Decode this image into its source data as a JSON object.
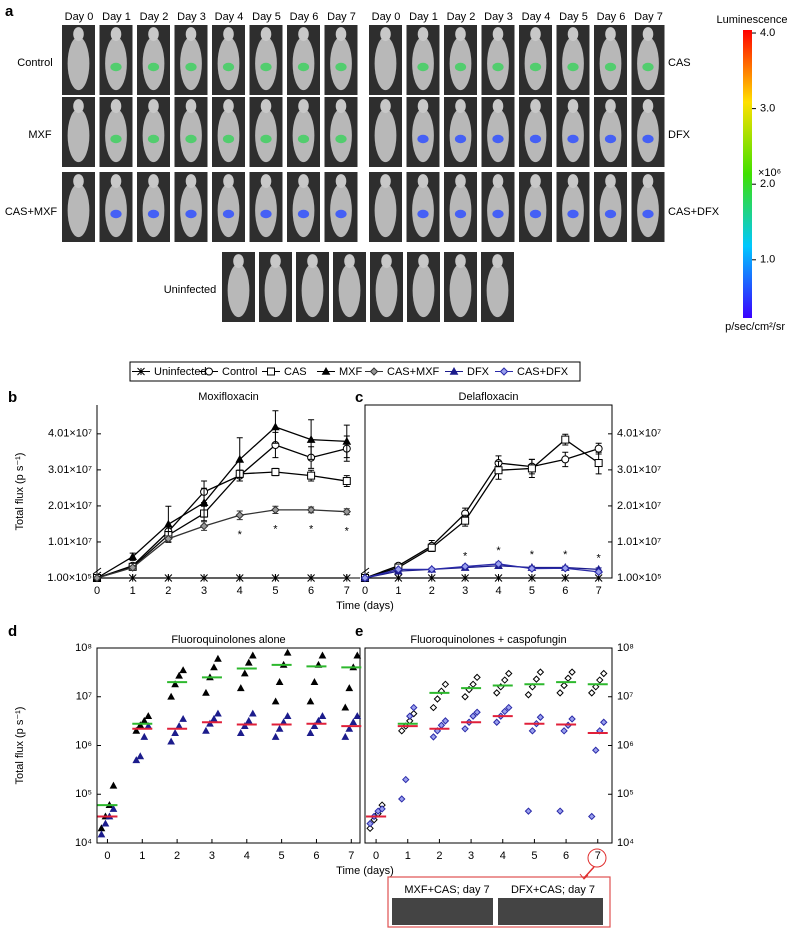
{
  "panel_labels": [
    "a",
    "b",
    "c",
    "d",
    "e"
  ],
  "panel_a": {
    "days_left": [
      "Day 0",
      "Day 1",
      "Day 2",
      "Day 3",
      "Day 4",
      "Day 5",
      "Day 6",
      "Day 7"
    ],
    "days_right": [
      "Day 0",
      "Day 1",
      "Day 2",
      "Day 3",
      "Day 4",
      "Day 5",
      "Day 6",
      "Day 7"
    ],
    "groups_left": [
      "Control",
      "MXF",
      "CAS+MXF"
    ],
    "groups_right": [
      "CAS",
      "DFX",
      "CAS+DFX"
    ],
    "uninfected": "Uninfected",
    "colorbar": {
      "title": "Luminescence",
      "multiplier": "×10⁶",
      "unit": "p/sec/cm²/sr",
      "lim": [
        0.23,
        4.04
      ],
      "ticks": [
        {
          "value": 4,
          "label": "4.0"
        },
        {
          "value": 3,
          "label": "3.0"
        },
        {
          "value": 2,
          "label": "2.0"
        },
        {
          "value": 1,
          "label": "1.0"
        }
      ]
    }
  },
  "legend": [
    {
      "name": "Uninfected",
      "marker": "x",
      "color": "#000",
      "fill": "#000"
    },
    {
      "name": "Control",
      "marker": "circle",
      "color": "#000",
      "fill": "#fff"
    },
    {
      "name": "CAS",
      "marker": "square",
      "color": "#000",
      "fill": "#fff"
    },
    {
      "name": "MXF",
      "marker": "triangle",
      "color": "#000",
      "fill": "#000"
    },
    {
      "name": "CAS+MXF",
      "marker": "diamond",
      "color": "#333",
      "fill": "#999"
    },
    {
      "name": "DFX",
      "marker": "triangle",
      "color": "#1c1c8c",
      "fill": "#1c1c8c"
    },
    {
      "name": "CAS+DFX",
      "marker": "diamond",
      "color": "#2a2aa8",
      "fill": "#9aa0ee"
    }
  ],
  "chart_data": [
    {
      "type": "line",
      "title": "Moxifloxacin",
      "ylabel": "Total flux (p s⁻¹)",
      "xlabel": "Time (days)",
      "x": [
        0,
        1,
        2,
        3,
        4,
        5,
        6,
        7
      ],
      "xlim": [
        0,
        7.37
      ],
      "xticks": [
        0,
        1,
        2,
        3,
        4,
        5,
        6,
        7
      ],
      "ylim": [
        100000,
        48100000
      ],
      "yticks": [
        {
          "value": 100000,
          "label": "1.00×10⁵"
        },
        {
          "value": 10100000,
          "label": "1.01×10⁷"
        },
        {
          "value": 20100000,
          "label": "2.01×10⁷"
        },
        {
          "value": 30100000,
          "label": "3.01×10⁷"
        },
        {
          "value": 40100000,
          "label": "4.01×10⁷"
        }
      ],
      "series": [
        {
          "name": "Uninfected",
          "marker": "x",
          "color": "#000",
          "fill": "#000",
          "values": [
            100000,
            100000,
            100000,
            100000,
            100000,
            100000,
            100000,
            100000
          ]
        },
        {
          "name": "Control",
          "marker": "circle",
          "color": "#000",
          "fill": "#fff",
          "values": [
            100000,
            3500000,
            13000000,
            24000000,
            28500000,
            37000000,
            33500000,
            36000000
          ],
          "errors": [
            0,
            600000,
            1500000,
            3000000,
            1500000,
            3500000,
            3000000,
            3500000
          ]
        },
        {
          "name": "CAS",
          "marker": "square",
          "color": "#000",
          "fill": "#fff",
          "values": [
            100000,
            3200000,
            12000000,
            18000000,
            29000000,
            29500000,
            28500000,
            27000000
          ],
          "errors": [
            0,
            500000,
            1000000,
            2000000,
            1000000,
            1000000,
            1500000,
            1500000
          ]
        },
        {
          "name": "MXF",
          "marker": "triangle",
          "color": "#000",
          "fill": "#000",
          "values": [
            100000,
            6000000,
            15000000,
            21000000,
            33000000,
            42000000,
            38500000,
            38000000
          ],
          "errors": [
            0,
            1000000,
            5000000,
            4000000,
            6000000,
            4500000,
            5500000,
            4500000
          ]
        },
        {
          "name": "CAS+MXF",
          "marker": "diamond",
          "color": "#333",
          "fill": "#999",
          "values": [
            100000,
            3000000,
            11000000,
            14500000,
            17500000,
            19000000,
            19000000,
            18500000
          ],
          "errors": [
            0,
            400000,
            800000,
            1200000,
            1200000,
            1000000,
            800000,
            800000
          ]
        }
      ],
      "annotations": [
        {
          "text": "*",
          "x": 4,
          "y": 12000000
        },
        {
          "text": "*",
          "x": 5,
          "y": 13500000
        },
        {
          "text": "*",
          "x": 6,
          "y": 13500000
        },
        {
          "text": "*",
          "x": 7,
          "y": 13000000
        }
      ]
    },
    {
      "type": "line",
      "title": "Delafloxacin",
      "x": [
        0,
        1,
        2,
        3,
        4,
        5,
        6,
        7
      ],
      "xlim": [
        0,
        7.4
      ],
      "xticks": [
        0,
        1,
        2,
        3,
        4,
        5,
        6,
        7
      ],
      "ylim": [
        100000,
        48100000
      ],
      "yticks": [
        {
          "value": 100000,
          "label": "1.00×10⁵"
        },
        {
          "value": 10100000,
          "label": "1.01×10⁷"
        },
        {
          "value": 20100000,
          "label": "2.01×10⁷"
        },
        {
          "value": 30100000,
          "label": "3.01×10⁷"
        },
        {
          "value": 40100000,
          "label": "4.01×10⁷"
        }
      ],
      "series": [
        {
          "name": "Uninfected",
          "marker": "x",
          "color": "#000",
          "fill": "#000",
          "values": [
            100000,
            100000,
            100000,
            100000,
            100000,
            100000,
            100000,
            100000
          ]
        },
        {
          "name": "Control",
          "marker": "circle",
          "color": "#000",
          "fill": "#fff",
          "values": [
            100000,
            3500000,
            9000000,
            18000000,
            32000000,
            31000000,
            33000000,
            36000000
          ],
          "errors": [
            0,
            500000,
            1500000,
            1500000,
            2000000,
            2000000,
            2000000,
            1500000
          ]
        },
        {
          "name": "CAS",
          "marker": "square",
          "color": "#000",
          "fill": "#fff",
          "values": [
            100000,
            3000000,
            8500000,
            16000000,
            30000000,
            30500000,
            38500000,
            32000000
          ],
          "errors": [
            0,
            500000,
            1000000,
            1500000,
            2500000,
            2500000,
            1500000,
            3000000
          ]
        },
        {
          "name": "DFX",
          "marker": "triangle",
          "color": "#1c1c8c",
          "fill": "#1c1c8c",
          "values": [
            100000,
            2000000,
            2500000,
            3000000,
            3500000,
            3000000,
            3000000,
            2500000
          ],
          "errors": [
            0,
            300000,
            300000,
            400000,
            500000,
            400000,
            400000,
            400000
          ]
        },
        {
          "name": "CAS+DFX",
          "marker": "diamond",
          "color": "#2a2aa8",
          "fill": "#9aa0ee",
          "values": [
            100000,
            2500000,
            2500000,
            3300000,
            4000000,
            2700000,
            2800000,
            1800000
          ],
          "errors": [
            0,
            300000,
            300000,
            400000,
            500000,
            400000,
            400000,
            400000
          ]
        }
      ],
      "annotations": [
        {
          "text": "*",
          "x": 3,
          "y": 6000000
        },
        {
          "text": "*",
          "x": 4,
          "y": 7500000
        },
        {
          "text": "*",
          "x": 5,
          "y": 6500000
        },
        {
          "text": "*",
          "x": 6,
          "y": 6500000
        },
        {
          "text": "*",
          "x": 7,
          "y": 5500000
        }
      ]
    },
    {
      "type": "scatter",
      "title": "Fluoroquinolones alone",
      "ylabel": "Total flux (p s⁻¹)",
      "xlabel": "Time (days)",
      "log_y": true,
      "xlim": [
        -0.3,
        7.25
      ],
      "xticks": [
        0,
        1,
        2,
        3,
        4,
        5,
        6,
        7
      ],
      "ylim": [
        10000,
        100000000
      ],
      "yticks": [
        {
          "value": 10000,
          "label": "10⁴"
        },
        {
          "value": 100000,
          "label": "10⁵"
        },
        {
          "value": 1000000,
          "label": "10⁶"
        },
        {
          "value": 10000000,
          "label": "10⁷"
        },
        {
          "value": 100000000,
          "label": "10⁸"
        }
      ],
      "series": [
        {
          "name": "MXF",
          "marker": "triangle",
          "color": "#000",
          "fill": "#000",
          "x": [
            0,
            0,
            0,
            0,
            1,
            1,
            1,
            1,
            2,
            2,
            2,
            2,
            3,
            3,
            3,
            3,
            4,
            4,
            4,
            4,
            5,
            5,
            5,
            5,
            6,
            6,
            6,
            6,
            7,
            7,
            7,
            7
          ],
          "values": [
            20000,
            35000,
            60000,
            150000,
            2000000,
            2600000,
            3200000,
            4000000,
            10000000,
            18000000,
            27000000,
            35000000,
            12000000,
            25000000,
            40000000,
            60000000,
            15000000,
            30000000,
            50000000,
            70000000,
            8000000,
            20000000,
            45000000,
            80000000,
            8000000,
            20000000,
            45000000,
            70000000,
            6000000,
            15000000,
            40000000,
            70000000
          ]
        },
        {
          "name": "DFX",
          "marker": "triangle",
          "color": "#1c1c8c",
          "fill": "#1c1c8c",
          "x": [
            0,
            0,
            0,
            0,
            1,
            1,
            1,
            1,
            2,
            2,
            2,
            2,
            3,
            3,
            3,
            3,
            4,
            4,
            4,
            4,
            5,
            5,
            5,
            5,
            6,
            6,
            6,
            6,
            7,
            7,
            7,
            7
          ],
          "values": [
            15000,
            25000,
            35000,
            50000,
            500000,
            600000,
            1500000,
            2500000,
            1200000,
            1800000,
            2500000,
            3500000,
            2000000,
            2800000,
            3500000,
            4500000,
            1800000,
            2500000,
            3200000,
            4500000,
            1500000,
            2200000,
            3000000,
            4000000,
            1800000,
            2500000,
            3200000,
            4000000,
            1500000,
            2200000,
            3000000,
            4000000
          ]
        }
      ],
      "medians": [
        {
          "color": "#2db82d",
          "values": [
            60000,
            2800000,
            20000000,
            25000000,
            38000000,
            45000000,
            42000000,
            40000000
          ]
        },
        {
          "color": "#e0203a",
          "values": [
            35000,
            2200000,
            2200000,
            3000000,
            2700000,
            2700000,
            2800000,
            2500000
          ]
        }
      ]
    },
    {
      "type": "scatter",
      "title": "Fluoroquinolones + caspofungin",
      "log_y": true,
      "xlim": [
        -0.35,
        7.45
      ],
      "xticks": [
        0,
        1,
        2,
        3,
        4,
        5,
        6,
        7
      ],
      "ylim": [
        10000,
        100000000
      ],
      "yticks": [
        {
          "value": 10000,
          "label": "10⁴"
        },
        {
          "value": 100000,
          "label": "10⁵"
        },
        {
          "value": 1000000,
          "label": "10⁶"
        },
        {
          "value": 10000000,
          "label": "10⁷"
        },
        {
          "value": 100000000,
          "label": "10⁸"
        }
      ],
      "series": [
        {
          "name": "CAS+MXF",
          "marker": "diamond",
          "color": "#000",
          "fill": "#fff",
          "x": [
            0,
            0,
            0,
            0,
            1,
            1,
            1,
            1,
            2,
            2,
            2,
            2,
            3,
            3,
            3,
            3,
            4,
            4,
            4,
            4,
            5,
            5,
            5,
            5,
            6,
            6,
            6,
            6,
            7,
            7,
            7,
            7
          ],
          "values": [
            20000,
            30000,
            40000,
            60000,
            2000000,
            2500000,
            3200000,
            4500000,
            6000000,
            9000000,
            13000000,
            18000000,
            10000000,
            14000000,
            18000000,
            25000000,
            12000000,
            16000000,
            22000000,
            30000000,
            11000000,
            16000000,
            23000000,
            32000000,
            12000000,
            17000000,
            24000000,
            32000000,
            12000000,
            16000000,
            22000000,
            30000000
          ]
        },
        {
          "name": "CAS+DFX",
          "marker": "diamond",
          "color": "#2a2aa8",
          "fill": "#9aa0ee",
          "x": [
            0,
            0,
            0,
            0,
            1,
            1,
            1,
            1,
            2,
            2,
            2,
            2,
            3,
            3,
            3,
            3,
            4,
            4,
            4,
            4,
            5,
            5,
            5,
            5,
            6,
            6,
            6,
            6,
            7,
            7,
            7,
            7
          ],
          "values": [
            25000,
            35000,
            45000,
            50000,
            80000,
            200000,
            4000000,
            6000000,
            1500000,
            2000000,
            2600000,
            3200000,
            2200000,
            3000000,
            4000000,
            4800000,
            3000000,
            4000000,
            5000000,
            6000000,
            45000,
            2000000,
            2800000,
            3800000,
            45000,
            2000000,
            2600000,
            3500000,
            35000,
            800000,
            2000000,
            3000000
          ]
        }
      ],
      "medians": [
        {
          "color": "#2db82d",
          "values": [
            35000,
            2800000,
            12000000,
            15000000,
            17000000,
            18000000,
            20000000,
            18000000
          ]
        },
        {
          "color": "#e0203a",
          "values": [
            35000,
            2500000,
            2200000,
            3000000,
            4000000,
            2800000,
            2700000,
            1800000
          ]
        }
      ]
    }
  ],
  "inset": {
    "labels": [
      "MXF+CAS; day 7",
      "DFX+CAS; day 7"
    ]
  }
}
